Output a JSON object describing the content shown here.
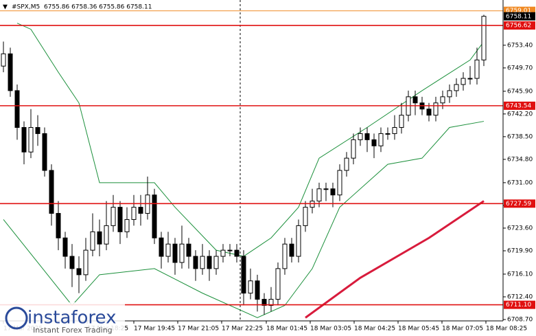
{
  "chart_data": {
    "type": "candlestick",
    "title": "#SPX,M5",
    "subtitle": "6755.86 6758.36 6755.86 6758.11",
    "open": [
      6750,
      6752,
      6746,
      6740,
      6736,
      6740,
      6739,
      6733,
      6726,
      6722,
      6719,
      6717,
      6716,
      6720,
      6723,
      6721,
      6724,
      6727,
      6723,
      6725,
      6727,
      6726,
      6729,
      6722,
      6719,
      6721,
      6718,
      6721,
      6719,
      6717,
      6719,
      6717,
      6719,
      6720,
      6720,
      6719,
      6713,
      6715,
      6712,
      6711,
      6712,
      6717,
      6721,
      6719,
      6724,
      6727,
      6728,
      6730,
      6730,
      6729,
      6733,
      6735,
      6738,
      6739,
      6738,
      6737,
      6739,
      6739,
      6740,
      6742,
      6745,
      6744,
      6743,
      6742,
      6744,
      6745,
      6746,
      6747,
      6748,
      6748,
      6751
    ],
    "high": [
      6754,
      6753,
      6747,
      6741,
      6743,
      6742,
      6740,
      6734,
      6728,
      6723,
      6721,
      6719,
      6722,
      6726,
      6725,
      6728,
      6729,
      6728,
      6727,
      6729,
      6729,
      6732,
      6730,
      6723,
      6723,
      6722,
      6724,
      6722,
      6720,
      6721,
      6720,
      6720,
      6721,
      6721,
      6721,
      6720,
      6717,
      6716,
      6713,
      6714,
      6718,
      6722,
      6722,
      6725,
      6728,
      6730,
      6731,
      6731,
      6731,
      6734,
      6736,
      6739,
      6740,
      6740,
      6739,
      6740,
      6740,
      6742,
      6744,
      6746,
      6746,
      6745,
      6744,
      6745,
      6746,
      6747,
      6748,
      6749,
      6750,
      6753,
      6758.36
    ],
    "low": [
      6749,
      6745,
      6738,
      6734,
      6735,
      6737,
      6732,
      6724,
      6720,
      6717,
      6714,
      6713,
      6715,
      6719,
      6719,
      6720,
      6723,
      6721,
      6722,
      6724,
      6724,
      6725,
      6721,
      6717,
      6718,
      6716,
      6717,
      6717,
      6715,
      6716,
      6715,
      6716,
      6718,
      6719,
      6718,
      6711,
      6712,
      6710,
      6709.5,
      6710,
      6711,
      6716,
      6718,
      6718,
      6723,
      6726,
      6727,
      6728,
      6727,
      6728,
      6732,
      6734,
      6737,
      6736,
      6735,
      6736,
      6738,
      6738,
      6739,
      6741,
      6742,
      6742,
      6741,
      6741,
      6743,
      6744,
      6745,
      6746,
      6747,
      6747,
      6750
    ],
    "close": [
      6752,
      6746,
      6740,
      6736,
      6740,
      6739,
      6733,
      6726,
      6722,
      6719,
      6717,
      6716,
      6720,
      6723,
      6721,
      6724,
      6727,
      6723,
      6725,
      6727,
      6726,
      6729,
      6722,
      6719,
      6721,
      6718,
      6721,
      6719,
      6717,
      6719,
      6717,
      6719,
      6720,
      6720,
      6719,
      6713,
      6715,
      6712,
      6711,
      6712,
      6717,
      6721,
      6719,
      6724,
      6727,
      6728,
      6730,
      6730,
      6729,
      6733,
      6735,
      6738,
      6739,
      6738,
      6737,
      6739,
      6739,
      6740,
      6742,
      6745,
      6744,
      6743,
      6742,
      6744,
      6745,
      6746,
      6747,
      6748,
      6748,
      6751,
      6758.11
    ],
    "overlays": [
      {
        "color": "#1a8f3a",
        "line_width": 1,
        "x": [
          2,
          4,
          8,
          11,
          14,
          22,
          25,
          31,
          35,
          39,
          43,
          46,
          53,
          61,
          68,
          70
        ],
        "values": [
          6757,
          6756,
          6749,
          6744,
          6731,
          6731,
          6727,
          6720,
          6719,
          6722,
          6727,
          6735,
          6740,
          6746,
          6751,
          6754
        ]
      },
      {
        "color": "#1a8f3a",
        "line_width": 1,
        "x": [
          0,
          5,
          10,
          14,
          22,
          29,
          37,
          41,
          45,
          49,
          56,
          61,
          65,
          70
        ],
        "values": [
          6725,
          6718,
          6711,
          6716,
          6717,
          6713,
          6709,
          6711,
          6717,
          6727,
          6734,
          6735,
          6740,
          6741
        ]
      },
      {
        "color": "#d81b3c",
        "line_width": 3,
        "x": [
          44,
          52,
          62,
          70
        ],
        "values": [
          6709,
          6715.5,
          6722,
          6728
        ]
      }
    ],
    "levels": [
      {
        "value": 6759.01,
        "color": "#f08a24"
      },
      {
        "value": 6756.62,
        "color": "#e01010"
      },
      {
        "value": 6743.54,
        "color": "#e01010"
      },
      {
        "value": 6727.59,
        "color": "#e01010"
      },
      {
        "value": {
          "value": 6711.1,
          "label": "6711.10"
        },
        "color": "#e01010"
      }
    ],
    "last_price": 6758.11,
    "ylim": [
      6708.48,
      6760.77
    ],
    "yticks": [
      {
        "value": 6753.4,
        "label": "6753.40"
      },
      {
        "value": 6749.7,
        "label": "6749.70"
      },
      {
        "value": 6745.9,
        "label": "6745.90"
      },
      {
        "value": 6742.2,
        "label": "6742.20"
      },
      {
        "value": 6738.5,
        "label": "6738.50"
      },
      {
        "value": 6734.8,
        "label": "6734.80"
      },
      {
        "value": 6731,
        "label": "6731.00"
      },
      {
        "value": 6727.3,
        "label": "6727.30"
      },
      {
        "value": 6723.6,
        "label": "6723.60"
      },
      {
        "value": 6719.9,
        "label": "6719.90"
      },
      {
        "value": 6716.1,
        "label": "6716.10"
      },
      {
        "value": 6712.4,
        "label": "6712.40"
      },
      {
        "value": 6708.7,
        "label": "6708.70"
      }
    ],
    "xticks": [
      {
        "value": 0,
        "label": "17 Mar 2025"
      },
      {
        "value": 12.2,
        "label": "17 Mar 18:25"
      },
      {
        "value": 19,
        "label": "17 Mar 19:45"
      },
      {
        "value": 25.4,
        "label": "17 Mar 21:05"
      },
      {
        "value": 31.8,
        "label": "17 Mar 22:25"
      },
      {
        "value": 38.3,
        "label": "18 Mar 01:45"
      },
      {
        "value": 44.7,
        "label": "18 Mar 03:05"
      },
      {
        "value": 51.1,
        "label": "18 Mar 04:25"
      },
      {
        "value": 57.5,
        "label": "18 Mar 05:45"
      },
      {
        "value": 63.9,
        "label": "18 Mar 07:05"
      },
      {
        "value": 70.3,
        "label": "18 Mar 08:25"
      }
    ],
    "brand": "instaforex",
    "tagline": "Instant Forex Trading"
  }
}
